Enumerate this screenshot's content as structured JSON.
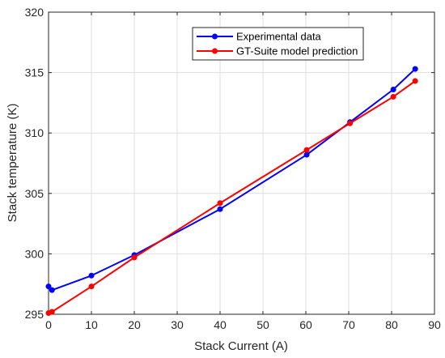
{
  "chart_data": {
    "type": "line",
    "xlabel": "Stack Current (A)",
    "ylabel": "Stack temperature (K)",
    "xlim": [
      0,
      90
    ],
    "ylim": [
      295,
      320
    ],
    "xticks": [
      0,
      10,
      20,
      30,
      40,
      50,
      60,
      70,
      80,
      90
    ],
    "yticks": [
      295,
      300,
      305,
      310,
      315,
      320
    ],
    "grid": true,
    "legend_position": "top-right",
    "series": [
      {
        "name": "Experimental data",
        "color": "#0000ff",
        "x": [
          0,
          0.8,
          10,
          20,
          40,
          60.2,
          70.3,
          80.4,
          85.5
        ],
        "y": [
          297.3,
          297.0,
          298.2,
          299.9,
          303.7,
          308.2,
          310.9,
          313.6,
          315.3
        ]
      },
      {
        "name": "GT-Suite model prediction",
        "color": "#ff0000",
        "x": [
          0,
          0.8,
          10,
          20,
          40,
          60.2,
          70.3,
          80.4,
          85.5
        ],
        "y": [
          295.1,
          295.2,
          297.3,
          299.7,
          304.2,
          308.6,
          310.8,
          313.0,
          314.3
        ]
      }
    ]
  }
}
